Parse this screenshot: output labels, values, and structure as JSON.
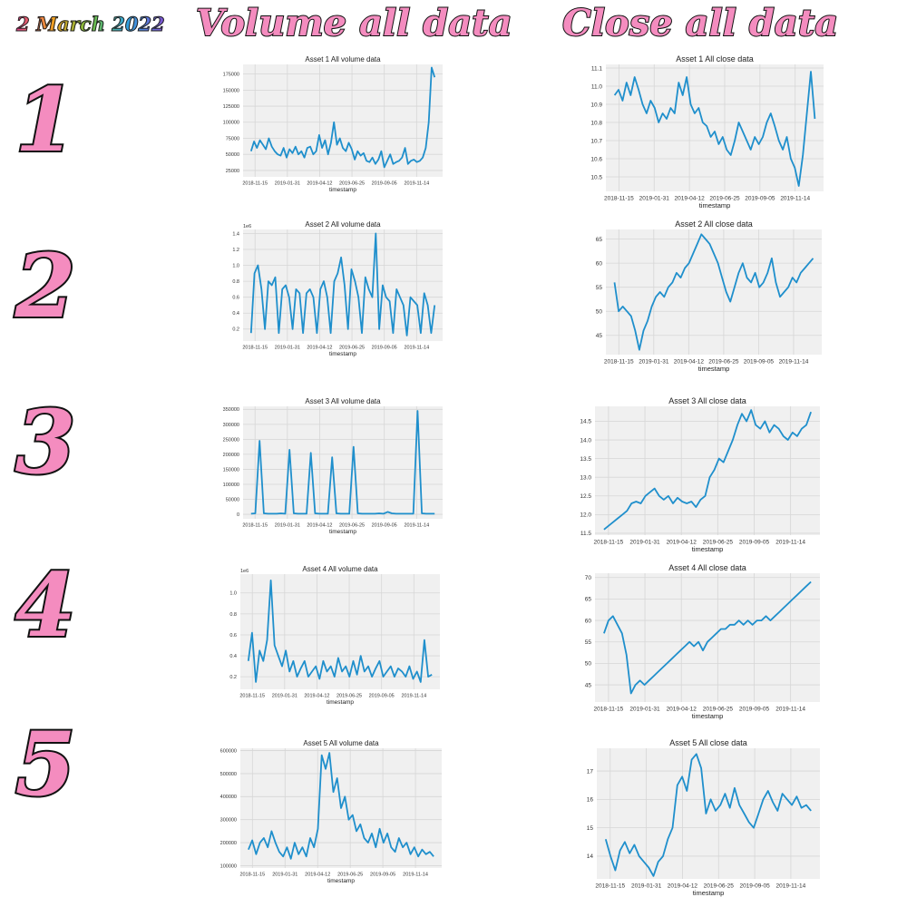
{
  "header": {
    "date": "2 March 2022",
    "volume_title": "Volume all data",
    "close_title": "Close all data"
  },
  "row_numbers": [
    "1",
    "2",
    "3",
    "4",
    "5"
  ],
  "colors": {
    "line": "#1f8fcc",
    "panel_bg": "#f0f0f0",
    "grid": "#d6d6d6",
    "number_fill": "#f48cbf"
  },
  "chart_data": [
    {
      "type": "line",
      "title": "Asset 1 All volume data",
      "xlabel": "timestamp",
      "ylabel": "",
      "x_ticks": [
        "2018-11-15",
        "2019-01-31",
        "2019-04-12",
        "2019-06-25",
        "2019-09-05",
        "2019-11-14"
      ],
      "y_ticks": [
        25000,
        50000,
        75000,
        100000,
        125000,
        150000,
        175000
      ],
      "y_tick_labels": [
        "25000",
        "50000",
        "75000",
        "100000",
        "125000",
        "150000",
        "175000"
      ],
      "multiplier": "",
      "ylim": [
        15000,
        190000
      ],
      "series": [
        {
          "values": [
            55000,
            70000,
            60000,
            72000,
            65000,
            58000,
            75000,
            62000,
            55000,
            50000,
            48000,
            60000,
            45000,
            58000,
            52000,
            62000,
            50000,
            55000,
            45000,
            60000,
            62000,
            50000,
            55000,
            80000,
            60000,
            72000,
            50000,
            68000,
            100000,
            65000,
            75000,
            60000,
            55000,
            68000,
            58000,
            42000,
            55000,
            48000,
            52000,
            40000,
            38000,
            45000,
            35000,
            42000,
            55000,
            30000,
            40000,
            50000,
            35000,
            38000,
            40000,
            45000,
            60000,
            35000,
            40000,
            42000,
            38000,
            40000,
            45000,
            60000,
            100000,
            185000,
            170000
          ]
        }
      ]
    },
    {
      "type": "line",
      "title": "Asset 2 All volume data",
      "xlabel": "timestamp",
      "ylabel": "",
      "x_ticks": [
        "2018-11-15",
        "2019-01-31",
        "2019-04-12",
        "2019-06-25",
        "2019-09-05",
        "2019-11-14"
      ],
      "y_ticks": [
        0.2,
        0.4,
        0.6,
        0.8,
        1.0,
        1.2,
        1.4
      ],
      "y_tick_labels": [
        "0.2",
        "0.4",
        "0.6",
        "0.8",
        "1.0",
        "1.2",
        "1.4"
      ],
      "multiplier": "1e6",
      "ylim": [
        0.05,
        1.45
      ],
      "series": [
        {
          "values": [
            0.15,
            0.9,
            1.0,
            0.7,
            0.2,
            0.8,
            0.75,
            0.85,
            0.15,
            0.7,
            0.75,
            0.6,
            0.2,
            0.7,
            0.65,
            0.15,
            0.65,
            0.7,
            0.6,
            0.15,
            0.7,
            0.8,
            0.6,
            0.15,
            0.8,
            0.9,
            1.1,
            0.75,
            0.2,
            0.95,
            0.8,
            0.6,
            0.15,
            0.85,
            0.7,
            0.6,
            1.4,
            0.2,
            0.75,
            0.6,
            0.55,
            0.15,
            0.7,
            0.6,
            0.5,
            0.12,
            0.6,
            0.55,
            0.5,
            0.15,
            0.65,
            0.5,
            0.15,
            0.5
          ]
        }
      ]
    },
    {
      "type": "line",
      "title": "Asset 3 All volume data",
      "xlabel": "timestamp",
      "ylabel": "",
      "x_ticks": [
        "2018-11-15",
        "2019-01-31",
        "2019-04-12",
        "2019-06-25",
        "2019-09-05",
        "2019-11-14"
      ],
      "y_ticks": [
        0,
        50000,
        100000,
        150000,
        200000,
        250000,
        300000,
        350000
      ],
      "y_tick_labels": [
        "0",
        "50000",
        "100000",
        "150000",
        "200000",
        "250000",
        "300000",
        "350000"
      ],
      "multiplier": "",
      "ylim": [
        -15000,
        360000
      ],
      "series": [
        {
          "values": [
            2000,
            3000,
            245000,
            3000,
            2000,
            2000,
            2000,
            3000,
            2000,
            215000,
            3000,
            2000,
            2000,
            2000,
            205000,
            3000,
            2000,
            2000,
            2000,
            190000,
            3000,
            2000,
            2000,
            2000,
            225000,
            3000,
            2000,
            2000,
            2000,
            2000,
            3000,
            2000,
            8000,
            3000,
            2000,
            2000,
            2000,
            2000,
            2000,
            345000,
            3000,
            2000,
            2000,
            2000
          ]
        }
      ]
    },
    {
      "type": "line",
      "title": "Asset 4 All volume data",
      "xlabel": "timestamp",
      "ylabel": "",
      "x_ticks": [
        "2018-11-15",
        "2019-01-31",
        "2019-04-12",
        "2019-06-25",
        "2019-09-05",
        "2019-11-14"
      ],
      "y_ticks": [
        0.2,
        0.4,
        0.6,
        0.8,
        1.0
      ],
      "y_tick_labels": [
        "0.2",
        "0.4",
        "0.6",
        "0.8",
        "1.0"
      ],
      "multiplier": "1e6",
      "ylim": [
        0.08,
        1.18
      ],
      "series": [
        {
          "values": [
            0.35,
            0.62,
            0.15,
            0.45,
            0.35,
            0.55,
            1.12,
            0.5,
            0.4,
            0.3,
            0.45,
            0.25,
            0.35,
            0.2,
            0.28,
            0.35,
            0.2,
            0.25,
            0.3,
            0.18,
            0.35,
            0.25,
            0.3,
            0.2,
            0.38,
            0.25,
            0.3,
            0.2,
            0.35,
            0.22,
            0.4,
            0.25,
            0.3,
            0.2,
            0.28,
            0.35,
            0.2,
            0.25,
            0.3,
            0.2,
            0.28,
            0.25,
            0.2,
            0.3,
            0.18,
            0.25,
            0.15,
            0.55,
            0.2,
            0.22
          ]
        }
      ]
    },
    {
      "type": "line",
      "title": "Asset 5 All volume data",
      "xlabel": "timestamp",
      "ylabel": "",
      "x_ticks": [
        "2018-11-15",
        "2019-01-31",
        "2019-04-12",
        "2019-06-25",
        "2019-09-05",
        "2019-11-14"
      ],
      "y_ticks": [
        100000,
        200000,
        300000,
        400000,
        500000,
        600000
      ],
      "y_tick_labels": [
        "100000",
        "200000",
        "300000",
        "400000",
        "500000",
        "600000"
      ],
      "multiplier": "",
      "ylim": [
        90000,
        610000
      ],
      "series": [
        {
          "values": [
            170000,
            210000,
            150000,
            200000,
            220000,
            180000,
            250000,
            200000,
            160000,
            140000,
            180000,
            130000,
            200000,
            150000,
            180000,
            140000,
            220000,
            180000,
            260000,
            580000,
            520000,
            590000,
            420000,
            480000,
            350000,
            400000,
            300000,
            320000,
            250000,
            280000,
            220000,
            200000,
            240000,
            180000,
            260000,
            200000,
            240000,
            180000,
            160000,
            220000,
            180000,
            200000,
            150000,
            180000,
            140000,
            170000,
            150000,
            160000,
            140000
          ]
        }
      ]
    },
    {
      "type": "line",
      "title": "Asset 1 All close data",
      "xlabel": "timestamp",
      "ylabel": "",
      "x_ticks": [
        "2018-11-15",
        "2019-01-31",
        "2019-04-12",
        "2019-06-25",
        "2019-09-05",
        "2019-11-14"
      ],
      "y_ticks": [
        10.5,
        10.6,
        10.7,
        10.8,
        10.9,
        11.0,
        11.1
      ],
      "y_tick_labels": [
        "10.5",
        "10.6",
        "10.7",
        "10.8",
        "10.9",
        "11.0",
        "11.1"
      ],
      "multiplier": "",
      "ylim": [
        10.42,
        11.12
      ],
      "series": [
        {
          "values": [
            10.95,
            10.98,
            10.92,
            11.02,
            10.95,
            11.05,
            10.98,
            10.9,
            10.85,
            10.92,
            10.88,
            10.8,
            10.85,
            10.82,
            10.88,
            10.85,
            11.02,
            10.95,
            11.05,
            10.9,
            10.85,
            10.88,
            10.8,
            10.78,
            10.72,
            10.75,
            10.68,
            10.72,
            10.65,
            10.62,
            10.7,
            10.8,
            10.75,
            10.7,
            10.65,
            10.72,
            10.68,
            10.72,
            10.8,
            10.85,
            10.78,
            10.7,
            10.65,
            10.72,
            10.6,
            10.55,
            10.45,
            10.62,
            10.85,
            11.08,
            10.82
          ]
        }
      ]
    },
    {
      "type": "line",
      "title": "Asset 2 All close data",
      "xlabel": "timestamp",
      "ylabel": "",
      "x_ticks": [
        "2018-11-15",
        "2019-01-31",
        "2019-04-12",
        "2019-06-25",
        "2019-09-05",
        "2019-11-14"
      ],
      "y_ticks": [
        45,
        50,
        55,
        60,
        65
      ],
      "y_tick_labels": [
        "45",
        "50",
        "55",
        "60",
        "65"
      ],
      "multiplier": "",
      "ylim": [
        41,
        67
      ],
      "series": [
        {
          "values": [
            56,
            50,
            51,
            50,
            49,
            46,
            42,
            46,
            48,
            51,
            53,
            54,
            53,
            55,
            56,
            58,
            57,
            59,
            60,
            62,
            64,
            66,
            65,
            64,
            62,
            60,
            57,
            54,
            52,
            55,
            58,
            60,
            57,
            56,
            58,
            55,
            56,
            58,
            61,
            56,
            53,
            54,
            55,
            57,
            56,
            58,
            59,
            60,
            61
          ]
        }
      ]
    },
    {
      "type": "line",
      "title": "Asset 3 All close data",
      "xlabel": "timestamp",
      "ylabel": "",
      "x_ticks": [
        "2018-11-15",
        "2019-01-31",
        "2019-04-12",
        "2019-06-25",
        "2019-09-05",
        "2019-11-14"
      ],
      "y_ticks": [
        11.5,
        12.0,
        12.5,
        13.0,
        13.5,
        14.0,
        14.5
      ],
      "y_tick_labels": [
        "11.5",
        "12.0",
        "12.5",
        "13.0",
        "13.5",
        "14.0",
        "14.5"
      ],
      "multiplier": "",
      "ylim": [
        11.45,
        14.9
      ],
      "series": [
        {
          "values": [
            11.6,
            11.7,
            11.8,
            11.9,
            12.0,
            12.1,
            12.3,
            12.35,
            12.3,
            12.5,
            12.6,
            12.7,
            12.5,
            12.4,
            12.5,
            12.3,
            12.45,
            12.35,
            12.3,
            12.35,
            12.2,
            12.4,
            12.5,
            13.0,
            13.2,
            13.5,
            13.4,
            13.7,
            14.0,
            14.4,
            14.7,
            14.5,
            14.8,
            14.4,
            14.3,
            14.5,
            14.2,
            14.4,
            14.3,
            14.1,
            14.0,
            14.2,
            14.1,
            14.3,
            14.4,
            14.75
          ]
        }
      ]
    },
    {
      "type": "line",
      "title": "Asset 4 All close data",
      "xlabel": "timestamp",
      "ylabel": "",
      "x_ticks": [
        "2018-11-15",
        "2019-01-31",
        "2019-04-12",
        "2019-06-25",
        "2019-09-05",
        "2019-11-14"
      ],
      "y_ticks": [
        45,
        50,
        55,
        60,
        65,
        70
      ],
      "y_tick_labels": [
        "45",
        "50",
        "55",
        "60",
        "65",
        "70"
      ],
      "multiplier": "",
      "ylim": [
        41,
        71
      ],
      "series": [
        {
          "values": [
            57,
            60,
            61,
            59,
            57,
            52,
            43,
            45,
            46,
            45,
            46,
            47,
            48,
            49,
            50,
            51,
            52,
            53,
            54,
            55,
            54,
            55,
            53,
            55,
            56,
            57,
            58,
            58,
            59,
            59,
            60,
            59,
            60,
            59,
            60,
            60,
            61,
            60,
            61,
            62,
            63,
            64,
            65,
            66,
            67,
            68,
            69
          ]
        }
      ]
    },
    {
      "type": "line",
      "title": "Asset 5 All close data",
      "xlabel": "timestamp",
      "ylabel": "",
      "x_ticks": [
        "2018-11-15",
        "2019-01-31",
        "2019-04-12",
        "2019-06-25",
        "2019-09-05",
        "2019-11-14"
      ],
      "y_ticks": [
        14,
        15,
        16,
        17
      ],
      "y_tick_labels": [
        "14",
        "15",
        "16",
        "17"
      ],
      "multiplier": "",
      "ylim": [
        13.2,
        17.8
      ],
      "series": [
        {
          "values": [
            14.6,
            14.0,
            13.5,
            14.2,
            14.5,
            14.1,
            14.4,
            14.0,
            13.8,
            13.6,
            13.3,
            13.8,
            14.0,
            14.6,
            15.0,
            16.5,
            16.8,
            16.3,
            17.4,
            17.6,
            17.1,
            15.5,
            16.0,
            15.6,
            15.8,
            16.2,
            15.7,
            16.4,
            15.8,
            15.5,
            15.2,
            15.0,
            15.5,
            16.0,
            16.3,
            15.9,
            15.6,
            16.2,
            16.0,
            15.8,
            16.1,
            15.7,
            15.8,
            15.6
          ]
        }
      ]
    }
  ]
}
